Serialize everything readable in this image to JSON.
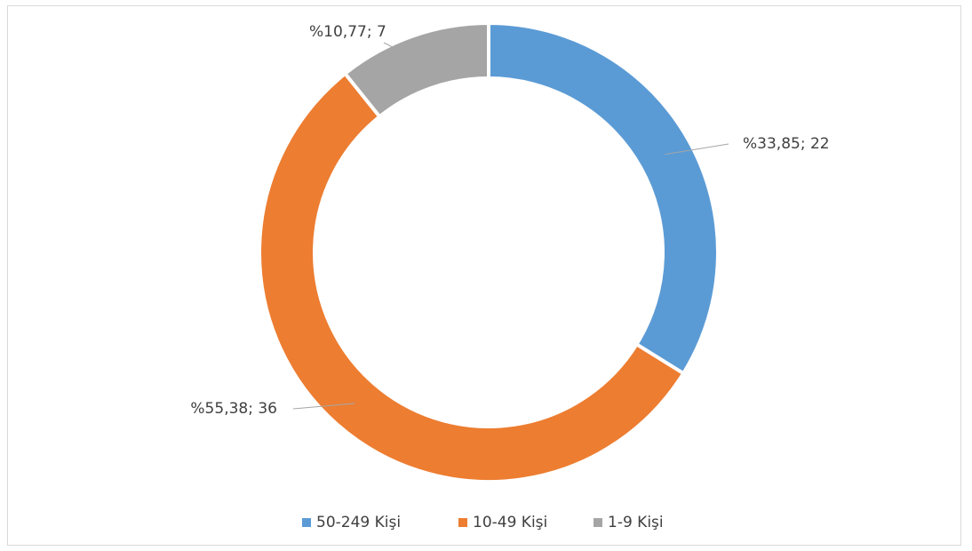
{
  "chart_data": {
    "type": "pie",
    "variant": "doughnut",
    "categories": [
      "50-249 Kişi",
      "10-49 Kişi",
      "1-9 Kişi"
    ],
    "values": [
      22,
      36,
      7
    ],
    "percent_labels": [
      "%33,85",
      "%55,38",
      "%10,77"
    ],
    "data_labels": [
      "%33,85; 22",
      "%55,38; 36",
      "%10,77; 7"
    ],
    "colors": [
      "#5b9bd5",
      "#ed7d31",
      "#a5a5a5"
    ],
    "legend_position": "bottom",
    "title": ""
  }
}
